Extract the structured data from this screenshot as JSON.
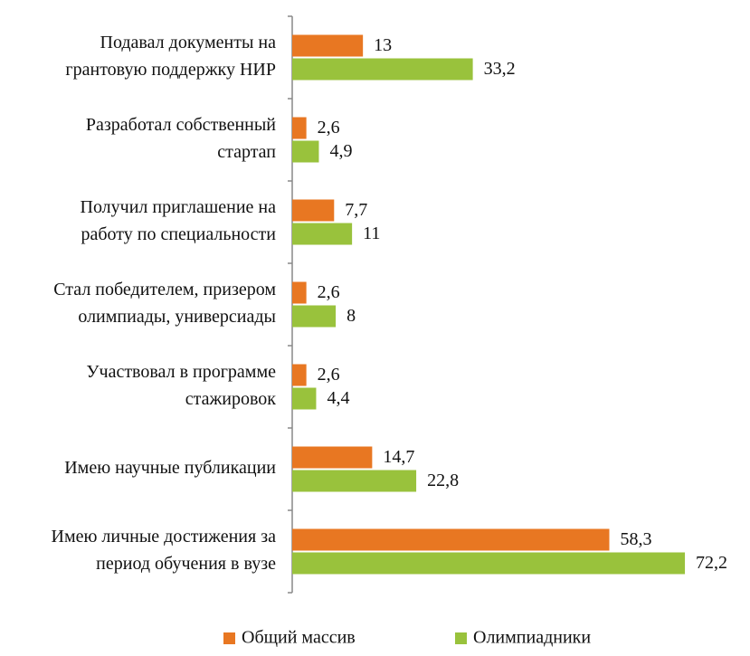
{
  "chart_data": {
    "type": "barh",
    "categories": [
      [
        "Подавал документы на",
        "грантовую поддержку НИР"
      ],
      [
        "Разработал собственный",
        "стартап"
      ],
      [
        "Получил приглашение на",
        "работу по специальности"
      ],
      [
        "Стал победителем, призером",
        "олимпиады, универсиады"
      ],
      [
        "Участвовал в программе",
        "стажировок"
      ],
      [
        "Имею научные публикации"
      ],
      [
        "Имею личные достижения за",
        "период обучения в вузе"
      ]
    ],
    "series": [
      {
        "name": "Общий массив",
        "color": "#e87722",
        "values": [
          13,
          2.6,
          7.7,
          2.6,
          2.6,
          14.7,
          58.3
        ],
        "value_labels": [
          "13",
          "2,6",
          "7,7",
          "2,6",
          "2,6",
          "14,7",
          "58,3"
        ]
      },
      {
        "name": "Олимпиадники",
        "color": "#99c23c",
        "values": [
          33.2,
          4.9,
          11,
          8,
          4.4,
          22.8,
          72.2
        ],
        "value_labels": [
          "33,2",
          "4,9",
          "11",
          "8",
          "4,4",
          "22,8",
          "72,2"
        ]
      }
    ],
    "xlim": [
      0,
      84
    ],
    "legend": "bottom"
  }
}
